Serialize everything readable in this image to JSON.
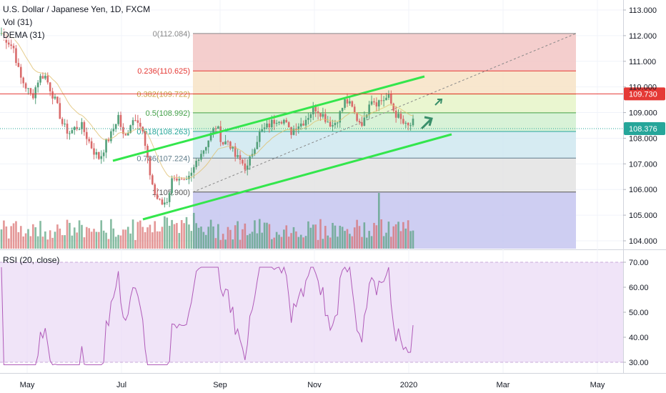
{
  "header": {
    "title": "U.S. Dollar / Japanese Yen, 1D, FXCM",
    "vol_label": "Vol (31)",
    "dema_label": "DEMA (31)"
  },
  "rsi_title": "RSI (20, close)",
  "colors": {
    "up": "#53a07a",
    "down": "#d96b6b",
    "channel": "#33e64c",
    "rsi_line": "#b05bb9",
    "rsi_band": "#e9d9f5",
    "dema": "#e0c070",
    "hline_red": "#e53935",
    "hline_green": "#26a69a",
    "fib_0": "#f2c6c4",
    "fib_236": "#f7e3c6",
    "fib_382": "#e6f5c8",
    "fib_5": "#d1f0d0",
    "fib_618": "#cfe8f0",
    "fib_786": "#e3e3e3",
    "vol_zone": "#c6c6f0"
  },
  "chart_data": {
    "type": "candlestick",
    "price_axis": {
      "ticks": [
        "113.000",
        "112.000",
        "111.000",
        "110.000",
        "109.000",
        "108.000",
        "107.000",
        "106.000",
        "105.000",
        "104.000"
      ],
      "ylim": [
        103.6,
        113.2
      ]
    },
    "time_axis": {
      "ticks": [
        "May",
        "Jul",
        "Sep",
        "Nov",
        "2020",
        "Mar",
        "May"
      ]
    },
    "price_badges": [
      {
        "value": "109.730",
        "color": "#e53935"
      },
      {
        "value": "108.376",
        "color": "#26a69a"
      }
    ],
    "fib_levels": [
      {
        "label": "0(112.084)",
        "value": 112.084,
        "color": "#888888"
      },
      {
        "label": "0.236(110.625)",
        "value": 110.625,
        "color": "#e53935"
      },
      {
        "label": "0.382(109.722)",
        "value": 109.722,
        "color": "#c8a040"
      },
      {
        "label": "0.5(108.992)",
        "value": 108.992,
        "color": "#43a047"
      },
      {
        "label": "0.618(108.263)",
        "value": 108.263,
        "color": "#26a69a"
      },
      {
        "label": "0.786(107.224)",
        "value": 107.224,
        "color": "#607d8b"
      },
      {
        "label": "1(105.900)",
        "value": 105.9,
        "color": "#555555"
      }
    ],
    "rsi_axis": {
      "ticks": [
        "70.00",
        "60.00",
        "50.00",
        "40.00",
        "30.00"
      ],
      "ylim": [
        28,
        72
      ]
    },
    "price_path": [
      112.1,
      111.8,
      111.5,
      110.4,
      110.0,
      109.6,
      110.3,
      110.5,
      109.9,
      109.3,
      108.5,
      108.2,
      108.4,
      108.5,
      108.0,
      107.5,
      107.2,
      107.8,
      108.2,
      108.9,
      107.9,
      108.6,
      108.9,
      108.2,
      106.8,
      105.8,
      105.4,
      105.6,
      106.6,
      106.3,
      106.2,
      106.6,
      107.3,
      107.6,
      108.1,
      108.5,
      107.8,
      107.9,
      107.3,
      107.1,
      106.8,
      107.6,
      108.2,
      108.4,
      108.6,
      108.8,
      108.7,
      108.2,
      108.5,
      108.6,
      108.9,
      109.2,
      109.0,
      108.7,
      108.5,
      108.9,
      109.5,
      109.2,
      108.7,
      108.6,
      109.6,
      109.4,
      109.5,
      109.6,
      109.0,
      108.7,
      108.4,
      108.6
    ]
  }
}
